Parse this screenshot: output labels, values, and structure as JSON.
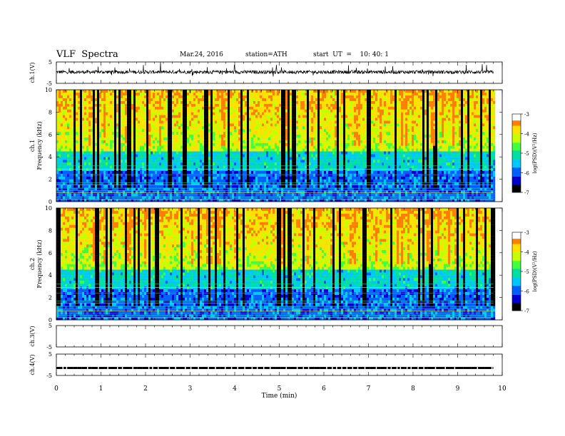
{
  "header": {
    "title": "VLF  Spectra",
    "date": "Mar.24, 2016",
    "station": "station=ATH",
    "start_ut": "start  UT  =    10: 40: 1"
  },
  "chart_data": [
    {
      "type": "line",
      "panel": "ch1-waveform",
      "ylabel": "ch.1(V)",
      "ylim": [
        -5,
        5
      ],
      "yticks": [
        "5",
        "-5"
      ],
      "x_range_min": [
        0,
        9.8
      ],
      "series_baseline_v": 0.3
    },
    {
      "type": "heatmap",
      "panel": "ch1-spectrogram",
      "ylabel_top": "ch.1",
      "ylabel": "Frequency  (kHz)",
      "ylim": [
        0,
        10
      ],
      "yticks": [
        "0",
        "2",
        "4",
        "6",
        "8",
        "10"
      ],
      "x_range_min": [
        0,
        9.8
      ],
      "colorbar": {
        "label": "log(PSD)(V²/Hz)",
        "range": [
          -7,
          -3
        ],
        "ticks": [
          "-3",
          "-4",
          "-5",
          "-6",
          "-7"
        ]
      }
    },
    {
      "type": "heatmap",
      "panel": "ch2-spectrogram",
      "ylabel_top": "ch.2",
      "ylabel": "Frequency  (kHz)",
      "ylim": [
        0,
        10
      ],
      "yticks": [
        "0",
        "2",
        "4",
        "6",
        "8",
        "10"
      ],
      "x_range_min": [
        0,
        9.8
      ],
      "colorbar": {
        "label": "log(PSD)(V²/Hz)",
        "range": [
          -7,
          -3
        ],
        "ticks": [
          "-3",
          "-4",
          "-5",
          "-6",
          "-7"
        ]
      }
    },
    {
      "type": "line",
      "panel": "ch3-waveform",
      "ylabel": "ch.3(V)",
      "ylim": [
        -5,
        5
      ],
      "yticks": [
        "5",
        "-5"
      ]
    },
    {
      "type": "line",
      "panel": "ch4-waveform",
      "ylabel": "ch.4(V)",
      "ylim": [
        -5,
        5
      ],
      "yticks": [
        "5",
        "-5"
      ],
      "series_level_v": -1.5,
      "x_range_min": [
        0,
        9.8
      ]
    }
  ],
  "xaxis": {
    "label": "Time  (min)",
    "ticks": [
      "0",
      "1",
      "2",
      "3",
      "4",
      "5",
      "6",
      "7",
      "8",
      "9",
      "10"
    ],
    "xlim": [
      0,
      10
    ]
  },
  "colors": {
    "colormap": [
      "#000000",
      "#0000cc",
      "#0060ff",
      "#00c8ff",
      "#00e0a0",
      "#40ff40",
      "#c8ff00",
      "#ffe000",
      "#ff8000",
      "#e00000",
      "#ffffff"
    ]
  }
}
